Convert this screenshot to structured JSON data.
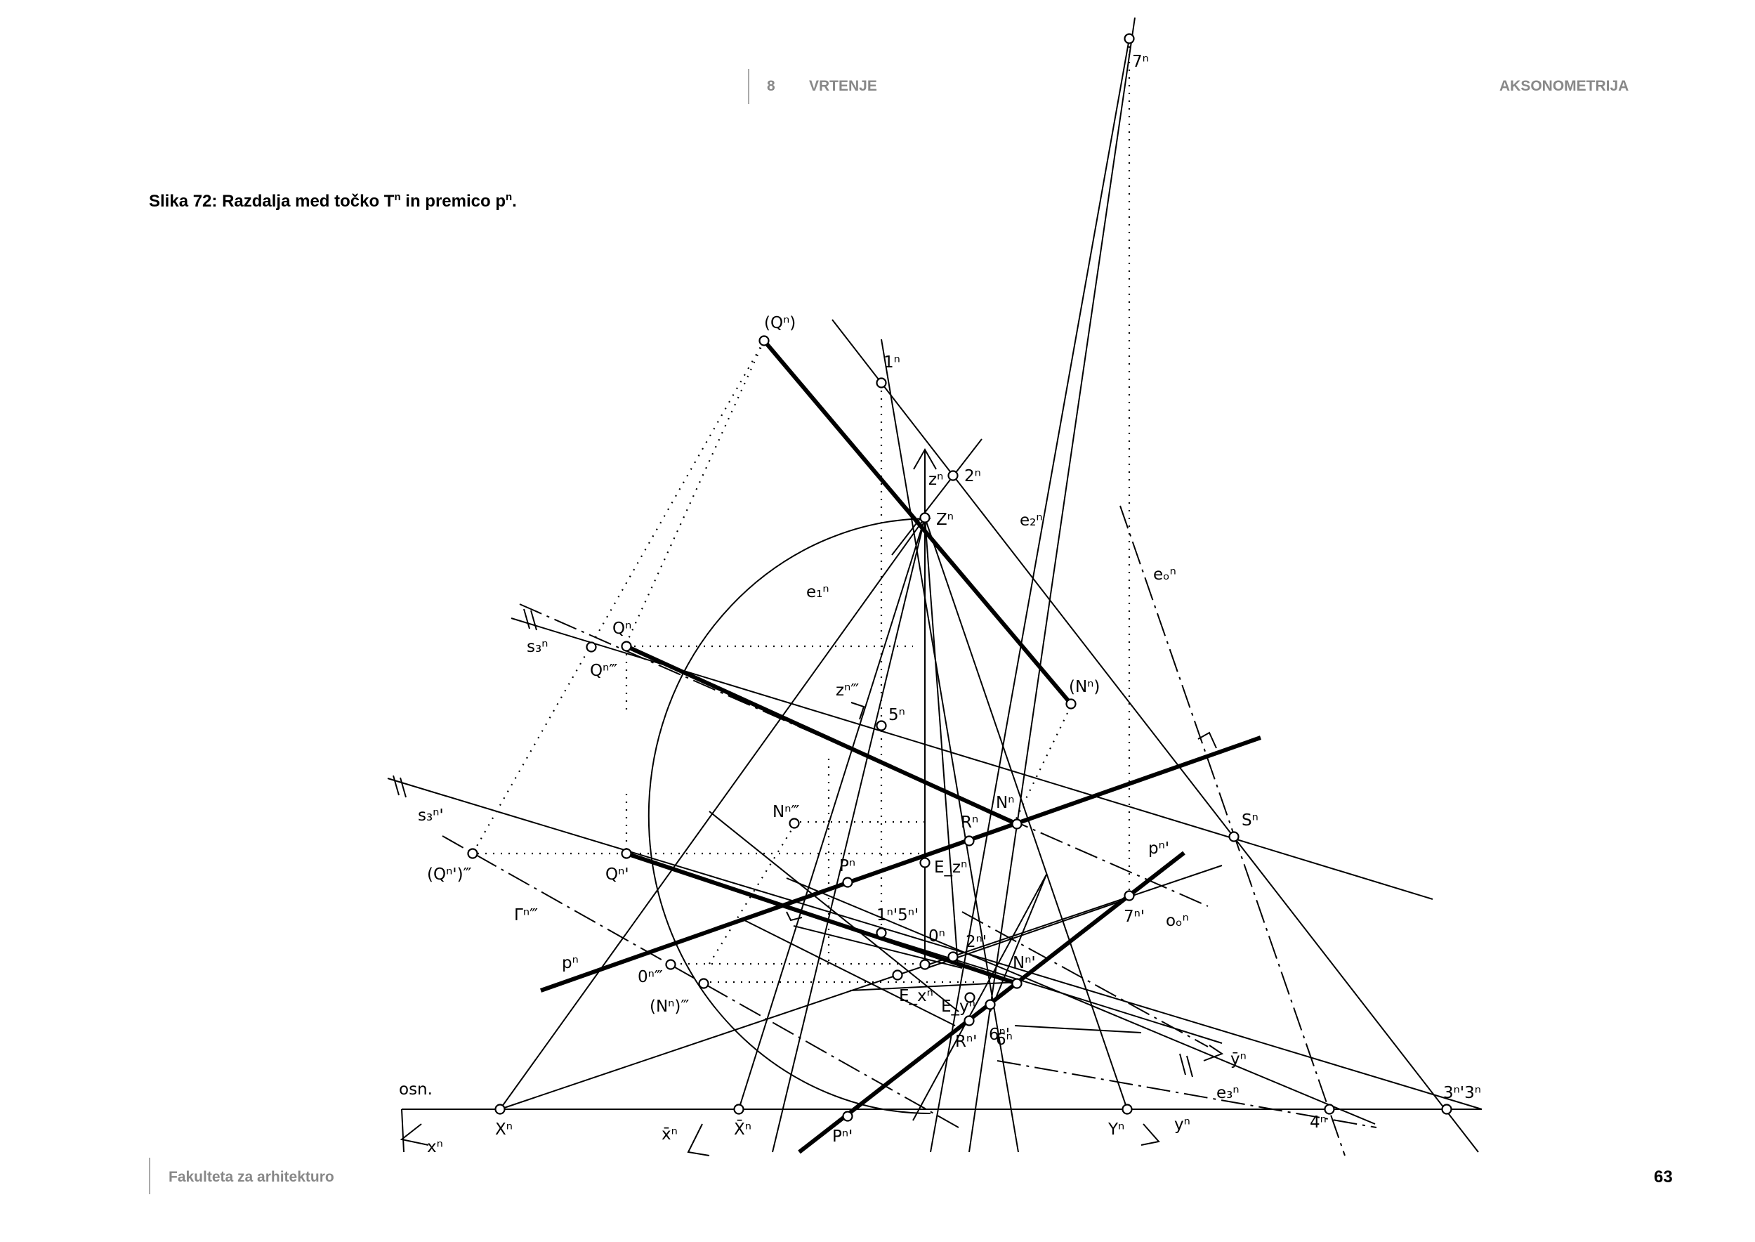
{
  "header": {
    "chapter_number": "8",
    "chapter_title": "VRTENJE",
    "section": "AKSONOMETRIJA"
  },
  "caption": {
    "prefix": "Slika 72: Razdalja med točko T",
    "sup1": "n",
    "middle": " in premico p",
    "sup2": "n",
    "suffix": "."
  },
  "footer": {
    "institution": "Fakulteta za arhitekturo",
    "page_number": "63"
  },
  "labels": {
    "Qn_paren": "(Qⁿ)",
    "one_n": "1ⁿ",
    "two_n": "2ⁿ",
    "z_n": "zⁿ",
    "Z_n": "Zⁿ",
    "e2_n": "e₂ⁿ",
    "e1_n": "e₁ⁿ",
    "eo_n": "eₒⁿ",
    "Q_n": "Qⁿ",
    "s3_n": "s₃ⁿ",
    "Qn_ppp": "Qⁿ‴",
    "z_nppp": "zⁿ‴",
    "five_n": "5ⁿ",
    "Nn_paren": "(Nⁿ)",
    "s3_nprime": "s₃ⁿ'",
    "Nn_ppp": "Nⁿ‴",
    "N_n": "Nⁿ",
    "R_n": "Rⁿ",
    "S_n": "Sⁿ",
    "Qnprime_ppp": "(Qⁿ')‴",
    "Q_nprime": "Qⁿ'",
    "P_n": "Pⁿ",
    "Ez_n": "E_zⁿ",
    "p_nprime": "pⁿ'",
    "Gamma_nppp": "Γⁿ‴",
    "onefive": "1ⁿ'5ⁿ'",
    "seven_nprime": "7ⁿ'",
    "oo_n": "oₒⁿ",
    "p_n": "pⁿ",
    "zero_n": "0ⁿ",
    "two_nprime": "2ⁿ'",
    "zero_nppp": "0ⁿ‴",
    "N_nprime": "Nⁿ'",
    "Nn_paren_ppp": "(Nⁿ)‴",
    "Ex_n": "E_xⁿ",
    "Ey_n": "E_yⁿ",
    "six": "6ⁿ'",
    "six_n": "6ⁿ",
    "R_nprime": "Rⁿ'",
    "ybar_n": "ȳⁿ",
    "e3_n": "e₃ⁿ",
    "osn": "osn.",
    "X_n": "Xⁿ",
    "x_n": "xⁿ",
    "xbar_n": "x̄ⁿ",
    "Xbar_n": "X̄ⁿ",
    "P_nprime": "Pⁿ'",
    "Y_n": "Yⁿ",
    "y_n": "yⁿ",
    "four_n": "4ⁿ",
    "three": "3ⁿ'3ⁿ",
    "seven_n": "7ⁿ"
  }
}
